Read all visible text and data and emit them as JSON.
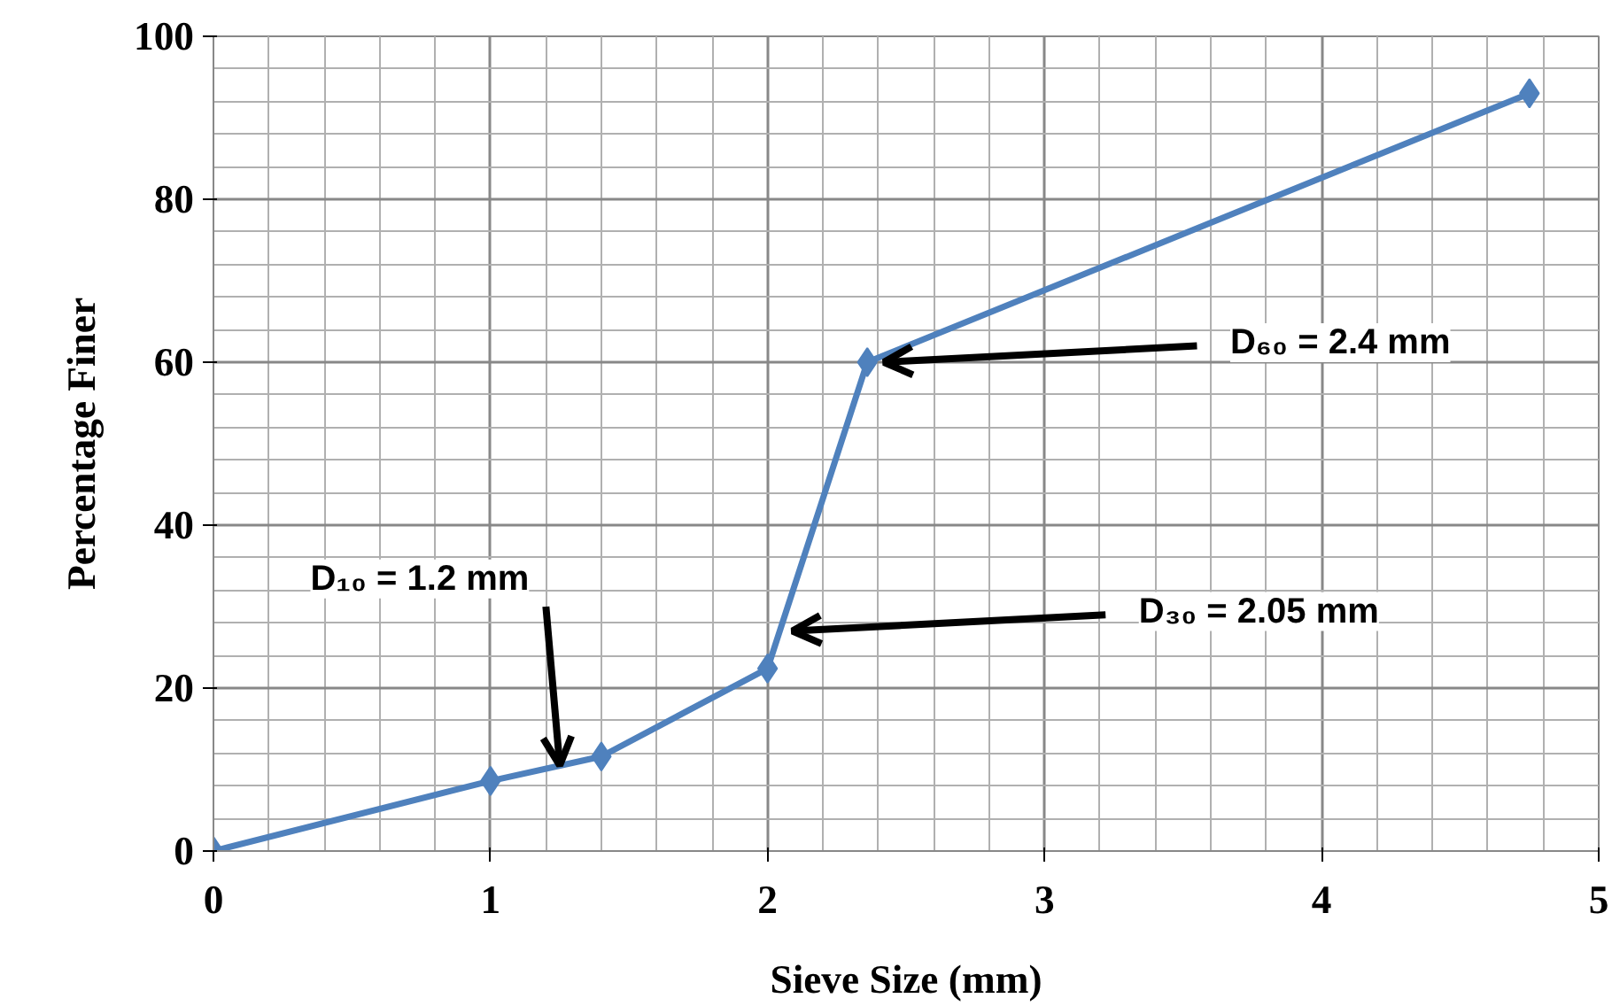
{
  "chart_data": {
    "type": "line",
    "xlabel": "Sieve Size (mm)",
    "ylabel": "Percentage Finer",
    "xlim": [
      0,
      5
    ],
    "xticks": [
      0,
      1,
      2,
      3,
      4,
      5
    ],
    "ylim": [
      0,
      100
    ],
    "yticks": [
      0,
      20,
      40,
      60,
      80,
      100
    ],
    "grid": true,
    "marker": "diamond",
    "line_style": "solid",
    "series": [
      {
        "color": "#4f81bd",
        "x": [
          0,
          1,
          1.4,
          2,
          2.36,
          4.75
        ],
        "values": [
          0,
          8.6,
          11.6,
          22.4,
          60,
          93
        ]
      }
    ],
    "annotations": [
      {
        "text": "D₁₀ = 1.2 mm",
        "x": 1.25,
        "y": 10
      },
      {
        "text": "D₃₀ = 2.05 mm",
        "x": 2.07,
        "y": 27
      },
      {
        "text": "D₆₀ = 2.4 mm",
        "x": 2.4,
        "y": 60
      }
    ]
  }
}
